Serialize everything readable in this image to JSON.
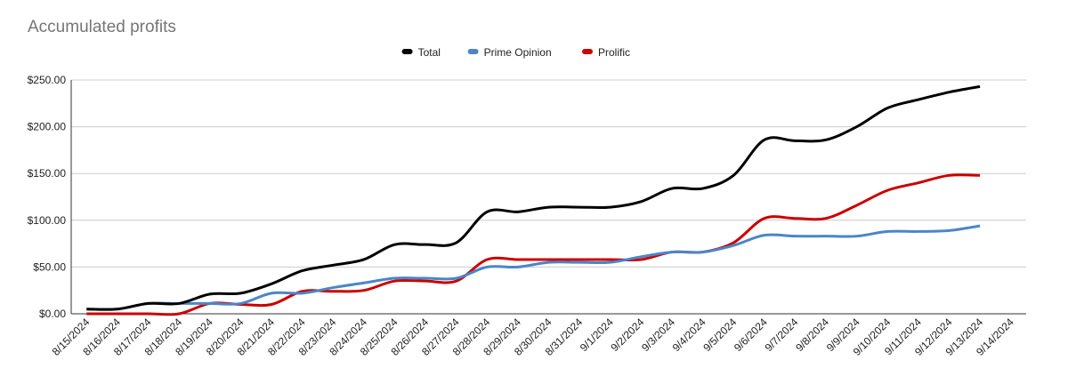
{
  "chart_data": {
    "type": "line",
    "title": "Accumulated profits",
    "categories": [
      "8/15/2024",
      "8/16/2024",
      "8/17/2024",
      "8/18/2024",
      "8/19/2024",
      "8/20/2024",
      "8/21/2024",
      "8/22/2024",
      "8/23/2024",
      "8/24/2024",
      "8/25/2024",
      "8/26/2024",
      "8/27/2024",
      "8/28/2024",
      "8/29/2024",
      "8/30/2024",
      "8/31/2024",
      "9/1/2024",
      "9/2/2024",
      "9/3/2024",
      "9/4/2024",
      "9/5/2024",
      "9/6/2024",
      "9/7/2024",
      "9/8/2024",
      "9/9/2024",
      "9/10/2024",
      "9/11/2024",
      "9/12/2024",
      "9/13/2024",
      "9/14/2024"
    ],
    "series": [
      {
        "name": "Total",
        "color": "#000000",
        "values": [
          5,
          5,
          11,
          11,
          21,
          22,
          32,
          46,
          52,
          58,
          74,
          74,
          76,
          109,
          109,
          114,
          114,
          114,
          120,
          134,
          134,
          148,
          186,
          185,
          186,
          200,
          220,
          229,
          237,
          243,
          null
        ]
      },
      {
        "name": "Prime Opinion",
        "color": "#4a86c8",
        "values": [
          5,
          5,
          11,
          11,
          11,
          11,
          22,
          22,
          28,
          33,
          38,
          38,
          38,
          50,
          50,
          55,
          55,
          55,
          61,
          66,
          66,
          73,
          84,
          83,
          83,
          83,
          88,
          88,
          89,
          94,
          null
        ]
      },
      {
        "name": "Prolific",
        "color": "#cc0000",
        "values": [
          0,
          0,
          0,
          0,
          11,
          10,
          10,
          24,
          24,
          25,
          35,
          35,
          35,
          58,
          58,
          58,
          58,
          58,
          58,
          66,
          66,
          76,
          102,
          102,
          102,
          116,
          132,
          140,
          148,
          148,
          null
        ]
      }
    ],
    "ylim": [
      0,
      250
    ],
    "yticks": [
      {
        "value": 0,
        "label": "$0.00"
      },
      {
        "value": 50,
        "label": "$50.00"
      },
      {
        "value": 100,
        "label": "$100.00"
      },
      {
        "value": 150,
        "label": "$150.00"
      },
      {
        "value": 200,
        "label": "$200.00"
      },
      {
        "value": 250,
        "label": "$250.00"
      }
    ],
    "grid": true,
    "legend": "top"
  }
}
